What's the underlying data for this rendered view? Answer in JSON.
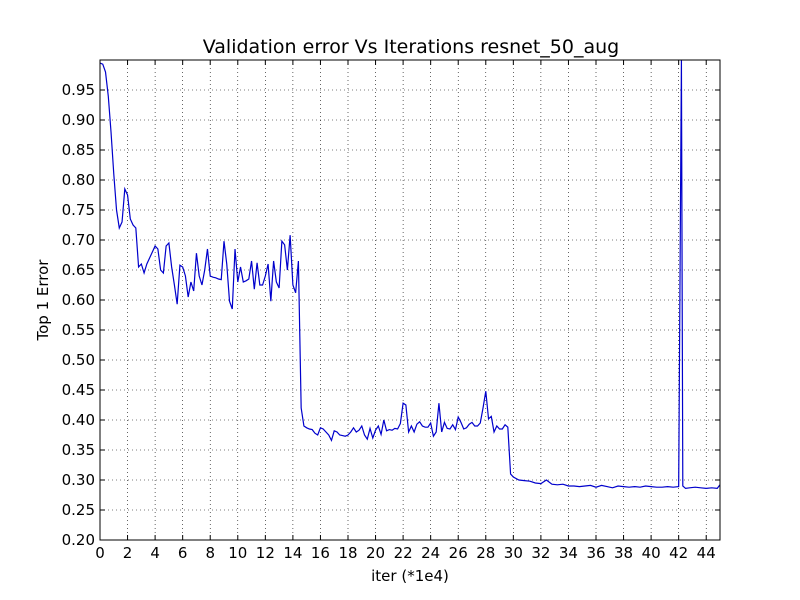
{
  "chart_data": {
    "type": "line",
    "title": "Validation error Vs Iterations resnet_50_aug",
    "xlabel": "iter (*1e4)",
    "ylabel": "Top 1 Error",
    "xlim": [
      0,
      45
    ],
    "ylim": [
      0.2,
      1.0
    ],
    "grid": true,
    "line_color": "#0000cc",
    "x_ticks": [
      0,
      2,
      4,
      6,
      8,
      10,
      12,
      14,
      16,
      18,
      20,
      22,
      24,
      26,
      28,
      30,
      32,
      34,
      36,
      38,
      40,
      42,
      44
    ],
    "y_ticks": [
      0.2,
      0.25,
      0.3,
      0.35,
      0.4,
      0.45,
      0.5,
      0.55,
      0.6,
      0.65,
      0.7,
      0.75,
      0.8,
      0.85,
      0.9,
      0.95
    ],
    "series": [
      {
        "x": [
          0,
          0.2,
          0.4,
          0.6,
          0.8,
          1.0,
          1.2,
          1.4,
          1.6,
          1.8,
          2.0,
          2.2,
          2.4,
          2.6,
          2.8,
          3.0,
          3.2,
          3.4,
          3.6,
          3.8,
          4.0,
          4.2,
          4.4,
          4.6,
          4.8,
          5.0,
          5.2,
          5.4,
          5.6,
          5.8,
          6.0,
          6.2,
          6.4,
          6.6,
          6.8,
          7.0,
          7.2,
          7.4,
          7.6,
          7.8,
          8.0,
          8.2,
          8.4,
          8.6,
          8.8,
          9.0,
          9.2,
          9.4,
          9.6,
          9.8,
          10.0,
          10.2,
          10.4,
          10.6,
          10.8,
          11.0,
          11.2,
          11.4,
          11.6,
          11.8,
          12.0,
          12.2,
          12.4,
          12.6,
          12.8,
          13.0,
          13.2,
          13.4,
          13.6,
          13.8,
          14.0,
          14.2,
          14.4,
          14.6,
          14.8,
          15.0,
          15.2,
          15.4,
          15.6,
          15.8,
          16.0,
          16.2,
          16.4,
          16.6,
          16.8,
          17.0,
          17.2,
          17.4,
          17.6,
          17.8,
          18.0,
          18.2,
          18.4,
          18.6,
          18.8,
          19.0,
          19.2,
          19.4,
          19.6,
          19.8,
          20.0,
          20.2,
          20.4,
          20.6,
          20.8,
          21.0,
          21.2,
          21.4,
          21.6,
          21.8,
          22.0,
          22.2,
          22.4,
          22.6,
          22.8,
          23.0,
          23.2,
          23.4,
          23.6,
          23.8,
          24.0,
          24.2,
          24.4,
          24.6,
          24.8,
          25.0,
          25.2,
          25.4,
          25.6,
          25.8,
          26.0,
          26.2,
          26.4,
          26.6,
          26.8,
          27.0,
          27.2,
          27.4,
          27.6,
          27.8,
          28.0,
          28.2,
          28.4,
          28.6,
          28.8,
          29.0,
          29.2,
          29.4,
          29.6,
          29.8,
          30.0,
          30.4,
          30.8,
          31.2,
          31.6,
          32.0,
          32.4,
          32.8,
          33.2,
          33.6,
          34.0,
          34.4,
          34.8,
          35.2,
          35.6,
          36.0,
          36.4,
          36.8,
          37.2,
          37.6,
          38.0,
          38.4,
          38.8,
          39.2,
          39.6,
          40.0,
          40.4,
          40.8,
          41.2,
          41.6,
          42.0,
          42.2,
          42.3,
          42.5,
          42.8,
          43.2,
          43.6,
          44.0,
          44.4,
          44.8,
          45.0
        ],
        "y": [
          0.995,
          0.993,
          0.98,
          0.94,
          0.88,
          0.81,
          0.75,
          0.72,
          0.73,
          0.785,
          0.775,
          0.735,
          0.725,
          0.72,
          0.655,
          0.66,
          0.645,
          0.66,
          0.67,
          0.68,
          0.69,
          0.685,
          0.65,
          0.645,
          0.69,
          0.695,
          0.655,
          0.625,
          0.593,
          0.658,
          0.655,
          0.64,
          0.605,
          0.63,
          0.615,
          0.678,
          0.64,
          0.625,
          0.65,
          0.685,
          0.64,
          0.638,
          0.637,
          0.635,
          0.634,
          0.698,
          0.66,
          0.598,
          0.585,
          0.685,
          0.63,
          0.655,
          0.63,
          0.632,
          0.635,
          0.665,
          0.618,
          0.662,
          0.625,
          0.625,
          0.64,
          0.66,
          0.598,
          0.665,
          0.63,
          0.62,
          0.698,
          0.692,
          0.65,
          0.708,
          0.625,
          0.612,
          0.665,
          0.42,
          0.39,
          0.387,
          0.385,
          0.384,
          0.378,
          0.375,
          0.387,
          0.385,
          0.38,
          0.375,
          0.366,
          0.382,
          0.38,
          0.375,
          0.374,
          0.373,
          0.375,
          0.38,
          0.387,
          0.38,
          0.383,
          0.39,
          0.375,
          0.368,
          0.386,
          0.37,
          0.383,
          0.39,
          0.376,
          0.4,
          0.382,
          0.384,
          0.383,
          0.386,
          0.385,
          0.394,
          0.428,
          0.425,
          0.38,
          0.39,
          0.38,
          0.393,
          0.397,
          0.39,
          0.388,
          0.388,
          0.395,
          0.373,
          0.38,
          0.428,
          0.38,
          0.396,
          0.386,
          0.385,
          0.392,
          0.384,
          0.405,
          0.396,
          0.385,
          0.387,
          0.393,
          0.396,
          0.39,
          0.39,
          0.395,
          0.42,
          0.448,
          0.402,
          0.406,
          0.38,
          0.39,
          0.385,
          0.385,
          0.392,
          0.388,
          0.31,
          0.305,
          0.3,
          0.299,
          0.298,
          0.295,
          0.294,
          0.3,
          0.293,
          0.292,
          0.293,
          0.29,
          0.29,
          0.289,
          0.29,
          0.291,
          0.288,
          0.291,
          0.289,
          0.287,
          0.29,
          0.289,
          0.288,
          0.289,
          0.288,
          0.29,
          0.289,
          0.288,
          0.288,
          0.289,
          0.288,
          0.289,
          1.0,
          0.29,
          0.286,
          0.287,
          0.288,
          0.287,
          0.286,
          0.287,
          0.286,
          0.292
        ]
      }
    ]
  }
}
